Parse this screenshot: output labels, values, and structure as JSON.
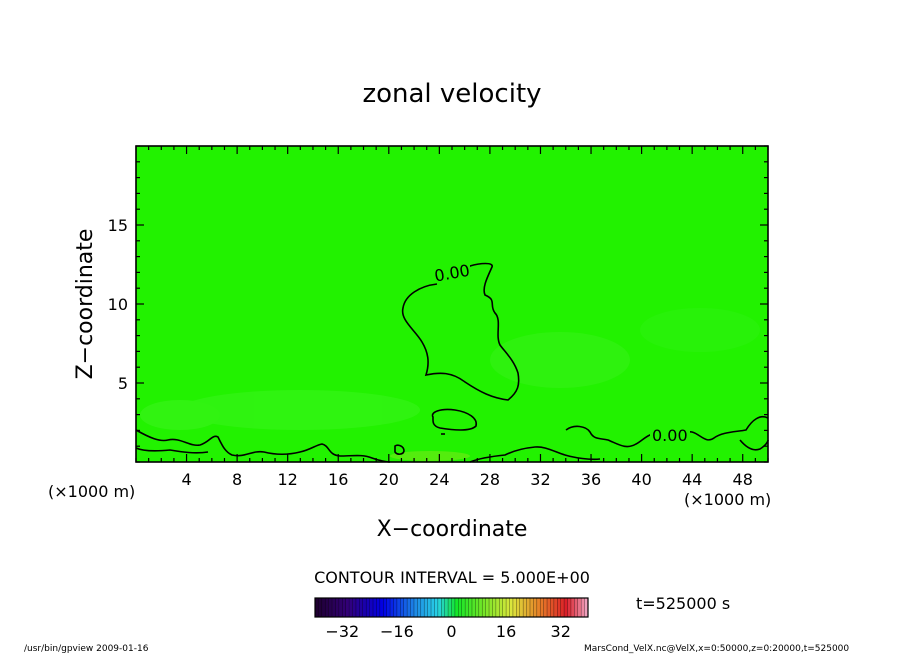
{
  "chart_data": {
    "type": "heatmap",
    "title": "zonal velocity",
    "xlabel": "X−coordinate",
    "ylabel": "Z−coordinate",
    "x_unit_label": "(×1000 m)",
    "x_unit_label_right": "(×1000 m)",
    "xlim": [
      0,
      50
    ],
    "ylim": [
      0,
      20
    ],
    "x_ticks": [
      4,
      8,
      12,
      16,
      20,
      24,
      28,
      32,
      36,
      40,
      44,
      48
    ],
    "y_ticks": [
      5,
      10,
      15
    ],
    "field_color": "#22f200",
    "contour_labels": [
      "0.00",
      "0.00"
    ],
    "contour_interval_text": "CONTOUR INTERVAL = 5.000E+00",
    "time_text": "t=525000 s",
    "colorbar": {
      "min": -40,
      "max": 40,
      "tick_values": [
        -32,
        -16,
        0,
        16,
        32
      ]
    }
  },
  "footer": {
    "left": "/usr/bin/gpview  2009-01-16",
    "right": "MarsCond_VelX.nc@VelX,x=0:50000,z=0:20000,t=525000"
  }
}
